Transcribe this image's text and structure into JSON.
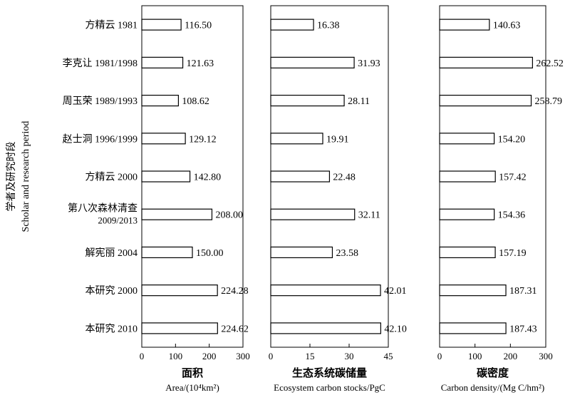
{
  "chart_data": {
    "type": "bar",
    "orientation": "horizontal",
    "y_label": [
      "学者及研究时段",
      "Scholar and research period"
    ],
    "categories": [
      "方精云 1981",
      "李克让 1981/1998",
      "周玉荣 1989/1993",
      "赵士洞 1996/1999",
      "方精云 2000",
      [
        "第八次森林清查",
        "2009/2013"
      ],
      "解宪丽 2004",
      "本研究 2000",
      "本研究 2010"
    ],
    "panels": [
      {
        "title_cn": "面积",
        "title_en": "Area/(10⁴km²)",
        "xlim": [
          0,
          300
        ],
        "ticks": [
          0,
          100,
          200,
          300
        ],
        "values": [
          116.5,
          121.63,
          108.62,
          129.12,
          142.8,
          208.0,
          150.0,
          224.28,
          224.62
        ],
        "labels": [
          "116.50",
          "121.63",
          "108.62",
          "129.12",
          "142.80",
          "208.00",
          "150.00",
          "224.28",
          "224.62"
        ]
      },
      {
        "title_cn": "生态系统碳储量",
        "title_en": "Ecosystem carbon stocks/PgC",
        "xlim": [
          0,
          45
        ],
        "ticks": [
          0,
          15,
          30,
          45
        ],
        "values": [
          16.38,
          31.93,
          28.11,
          19.91,
          22.48,
          32.11,
          23.58,
          42.01,
          42.1
        ],
        "labels": [
          "16.38",
          "31.93",
          "28.11",
          "19.91",
          "22.48",
          "32.11",
          "23.58",
          "42.01",
          "42.10"
        ]
      },
      {
        "title_cn": "碳密度",
        "title_en": "Carbon density/(Mg C/hm²)",
        "xlim": [
          0,
          300
        ],
        "ticks": [
          0,
          100,
          200,
          300
        ],
        "values": [
          140.63,
          262.52,
          258.79,
          154.2,
          157.42,
          154.36,
          157.19,
          187.31,
          187.43
        ],
        "labels": [
          "140.63",
          "262.52",
          "258.79",
          "154.20",
          "157.42",
          "154.36",
          "157.19",
          "187.31",
          "187.43"
        ]
      }
    ],
    "grid": false,
    "legend": "none",
    "bar_fill": "#ffffff",
    "bar_stroke": "#000000"
  }
}
